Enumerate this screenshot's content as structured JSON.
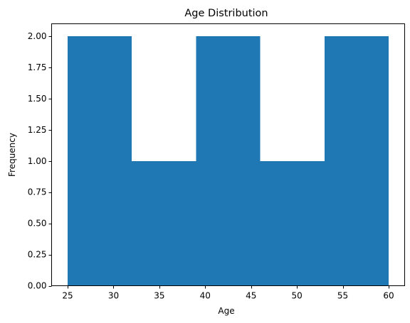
{
  "chart_data": {
    "type": "bar",
    "title": "Age Distribution",
    "xlabel": "Age",
    "ylabel": "Frequency",
    "bin_edges": [
      25,
      32,
      39,
      46,
      53,
      60
    ],
    "values": [
      2,
      1,
      2,
      1,
      2
    ],
    "xlim": [
      23.25,
      61.75
    ],
    "ylim": [
      0,
      2.1
    ],
    "xticks": [
      25,
      30,
      35,
      40,
      45,
      50,
      55,
      60
    ],
    "xtick_labels": [
      "25",
      "30",
      "35",
      "40",
      "45",
      "50",
      "55",
      "60"
    ],
    "yticks": [
      0,
      0.25,
      0.5,
      0.75,
      1.0,
      1.25,
      1.5,
      1.75,
      2.0
    ],
    "ytick_labels": [
      "0.00",
      "0.25",
      "0.50",
      "0.75",
      "1.00",
      "1.25",
      "1.50",
      "1.75",
      "2.00"
    ],
    "bar_color": "#1f77b4",
    "grid": false,
    "legend": "none"
  }
}
